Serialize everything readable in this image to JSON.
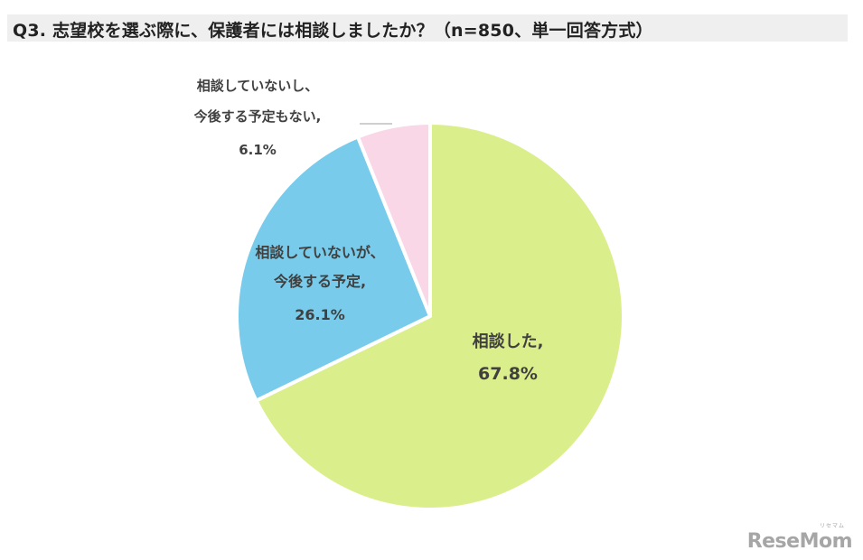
{
  "title": "Q3. 志望校を選ぶ際に、保護者には相談しましたか？（n=850、単一回答方式）",
  "chart_data": {
    "type": "pie",
    "title": "Q3. 志望校を選ぶ際に、保護者には相談しましたか？（n=850、単一回答方式）",
    "slices": [
      {
        "label_lines": [
          "相談した,",
          "67.8%"
        ],
        "value": 67.8,
        "color": "#dbee8c"
      },
      {
        "label_lines": [
          "相談していないが、",
          "今後する予定,",
          "26.1%"
        ],
        "value": 26.1,
        "color": "#78cbea"
      },
      {
        "label_lines": [
          "相談していないし、",
          "今後する予定もない,",
          "6.1%"
        ],
        "value": 6.1,
        "color": "#f9d7e6"
      }
    ]
  },
  "logo": {
    "text": "ReseMom",
    "ruby": "リセマム"
  }
}
